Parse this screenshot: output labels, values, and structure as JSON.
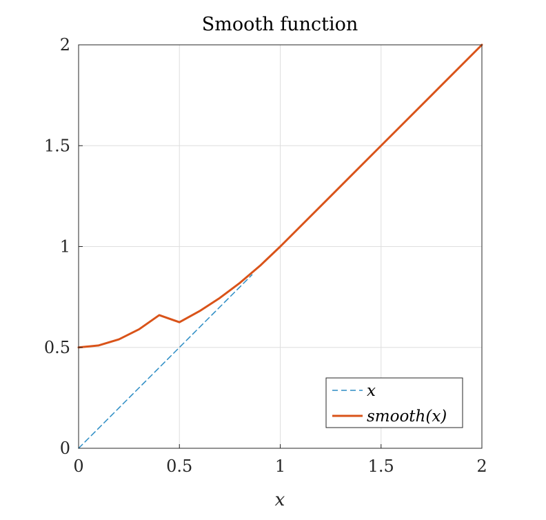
{
  "chart_data": {
    "type": "line",
    "title": "Smooth function",
    "xlabel": "x",
    "ylabel": "",
    "xlim": [
      0,
      2
    ],
    "ylim": [
      0,
      2
    ],
    "xticks": [
      0,
      0.5,
      1,
      1.5,
      2
    ],
    "yticks": [
      0,
      0.5,
      1,
      1.5,
      2
    ],
    "xtick_labels": [
      "0",
      "0.5",
      "1",
      "1.5",
      "2"
    ],
    "ytick_labels": [
      "0",
      "0.5",
      "1",
      "1.5",
      "2"
    ],
    "grid": true,
    "legend_position": "bottom-right",
    "series": [
      {
        "name": "x",
        "style": "dashed",
        "color": "#2b8cc4",
        "x": [
          0,
          0.86
        ],
        "y": [
          0,
          0.86
        ]
      },
      {
        "name": "smooth(x)",
        "style": "solid",
        "color": "#d95319",
        "x": [
          0,
          0.1,
          0.2,
          0.3,
          0.4,
          0.5,
          0.6,
          0.7,
          0.8,
          0.9,
          1.0,
          1.25,
          1.5,
          1.75,
          2.0
        ],
        "y": [
          0.5,
          0.51,
          0.54,
          0.59,
          0.66,
          0.625,
          0.68,
          0.745,
          0.82,
          0.905,
          1.0,
          1.25,
          1.5,
          1.75,
          2.0
        ]
      }
    ],
    "legend": {
      "entries": [
        {
          "label": "x",
          "style": "dashed",
          "color": "#2b8cc4"
        },
        {
          "label": "smooth(x)",
          "style": "solid",
          "color": "#d95319"
        }
      ]
    }
  }
}
